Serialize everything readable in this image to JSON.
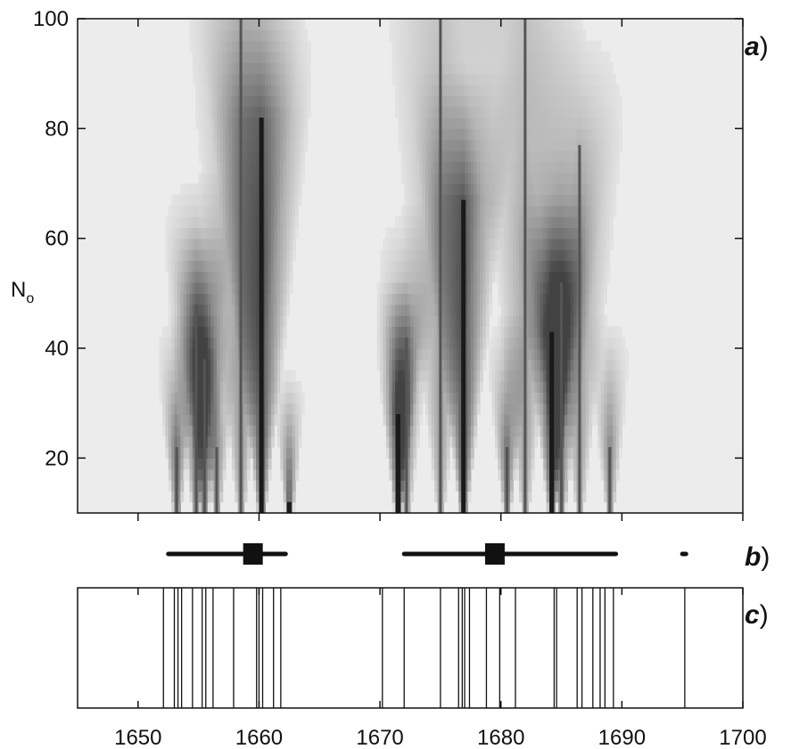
{
  "chart_data": [
    {
      "panel": "a",
      "type": "heatmap",
      "panel_label": "a",
      "ylabel_main": "N",
      "ylabel_sub": "o",
      "xlim": [
        1645,
        1700
      ],
      "ylim": [
        10,
        100
      ],
      "yticks": [
        20,
        40,
        60,
        80,
        100
      ],
      "ytick_labels": [
        "20",
        "40",
        "60",
        "80",
        "100"
      ],
      "xticks": [
        1650,
        1660,
        1670,
        1680,
        1690,
        1700
      ],
      "peaks": [
        {
          "x": 1653.2,
          "top": 22,
          "intensity": 0.75
        },
        {
          "x": 1654.8,
          "top": 48,
          "intensity": 0.7
        },
        {
          "x": 1655.5,
          "top": 38,
          "intensity": 0.75
        },
        {
          "x": 1656.5,
          "top": 22,
          "intensity": 0.6
        },
        {
          "x": 1658.5,
          "top": 100,
          "intensity": 0.55
        },
        {
          "x": 1660.2,
          "top": 82,
          "intensity": 1.0
        },
        {
          "x": 1662.5,
          "top": 12,
          "intensity": 0.9
        },
        {
          "x": 1671.5,
          "top": 28,
          "intensity": 1.0
        },
        {
          "x": 1672.2,
          "top": 42,
          "intensity": 0.6
        },
        {
          "x": 1675.0,
          "top": 100,
          "intensity": 0.5
        },
        {
          "x": 1676.9,
          "top": 67,
          "intensity": 1.0
        },
        {
          "x": 1680.5,
          "top": 22,
          "intensity": 0.75
        },
        {
          "x": 1682.0,
          "top": 100,
          "intensity": 0.5
        },
        {
          "x": 1684.2,
          "top": 43,
          "intensity": 1.0
        },
        {
          "x": 1685.0,
          "top": 52,
          "intensity": 0.7
        },
        {
          "x": 1686.5,
          "top": 77,
          "intensity": 0.5
        },
        {
          "x": 1689.0,
          "top": 22,
          "intensity": 0.6
        }
      ]
    },
    {
      "panel": "b",
      "type": "interval",
      "panel_label": "b",
      "intervals": [
        {
          "start": 1652.5,
          "end": 1662.2,
          "center": 1659.5
        },
        {
          "start": 1672.0,
          "end": 1689.5,
          "center": 1679.5
        },
        {
          "start": 1695.0,
          "end": 1695.3,
          "center": null
        }
      ]
    },
    {
      "panel": "c",
      "type": "event-lines",
      "panel_label": "c",
      "xlim": [
        1645,
        1700
      ],
      "xticks": [
        1650,
        1660,
        1670,
        1680,
        1690,
        1700
      ],
      "xtick_labels": [
        "1650",
        "1660",
        "1670",
        "1680",
        "1690",
        "1700"
      ],
      "events": [
        1652.1,
        1653.0,
        1653.3,
        1653.6,
        1654.5,
        1655.3,
        1655.6,
        1656.2,
        1657.9,
        1659.8,
        1660.0,
        1660.3,
        1661.2,
        1661.8,
        1670.2,
        1672.0,
        1675.0,
        1676.5,
        1676.8,
        1677.0,
        1677.4,
        1678.8,
        1679.9,
        1681.2,
        1684.4,
        1684.6,
        1686.3,
        1686.7,
        1687.6,
        1688.2,
        1688.6,
        1689.3,
        1695.2
      ]
    }
  ]
}
